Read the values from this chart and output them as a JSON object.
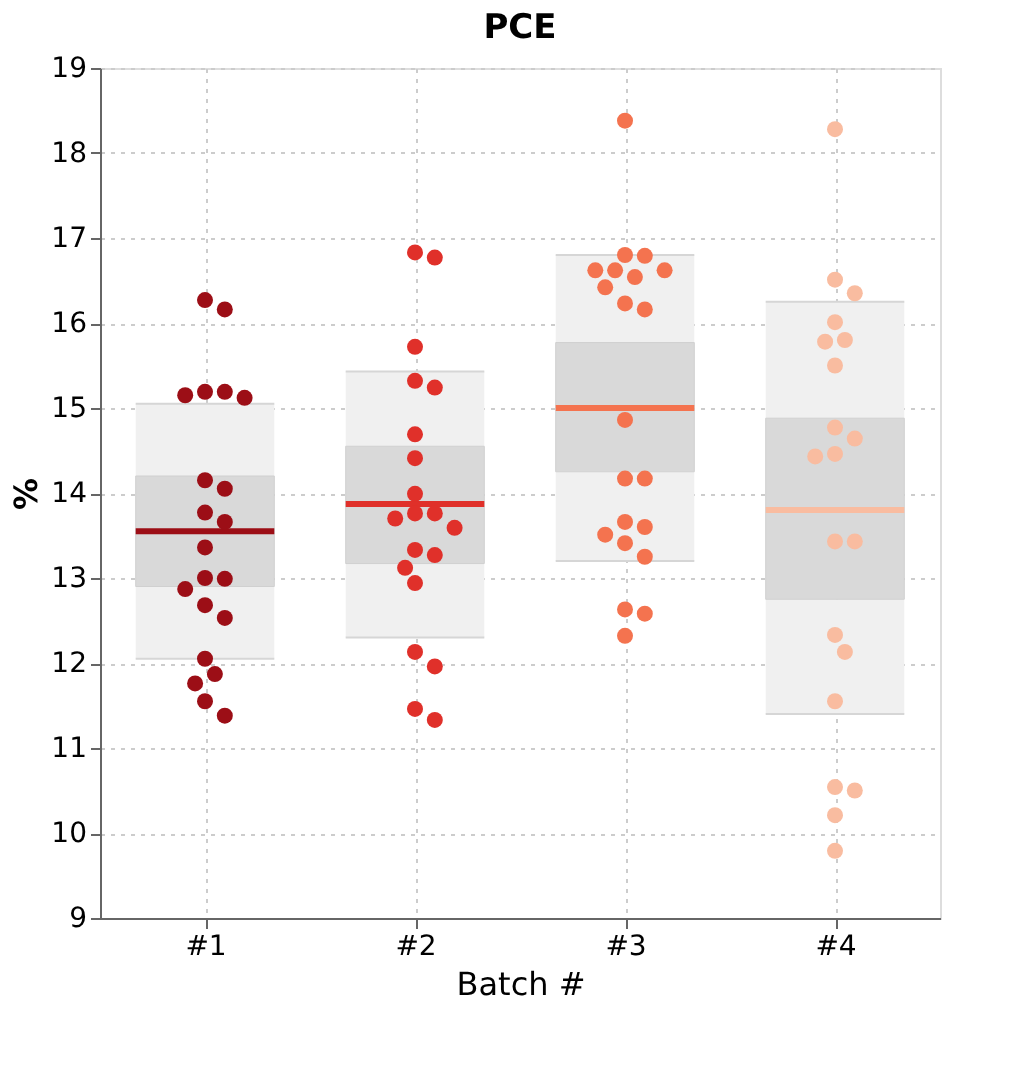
{
  "chart_data": {
    "type": "box",
    "title": "PCE",
    "xlabel": "Batch #",
    "ylabel": "%",
    "categories": [
      "#1",
      "#2",
      "#3",
      "#4"
    ],
    "boxes": [
      {
        "low": 12.05,
        "q1": 12.9,
        "median": 13.55,
        "q3": 14.2,
        "high": 15.05
      },
      {
        "low": 12.3,
        "q1": 13.17,
        "median": 13.87,
        "q3": 14.55,
        "high": 15.43
      },
      {
        "low": 13.2,
        "q1": 14.25,
        "median": 15.0,
        "q3": 15.77,
        "high": 16.8
      },
      {
        "low": 11.4,
        "q1": 12.75,
        "median": 13.8,
        "q3": 14.88,
        "high": 16.25
      }
    ],
    "series": [
      {
        "type": "scatter",
        "color": "#9c0e16",
        "x": [
          "#1",
          "#1",
          "#1",
          "#1",
          "#1",
          "#1",
          "#1",
          "#1",
          "#1",
          "#1",
          "#1",
          "#1",
          "#1",
          "#1",
          "#1",
          "#1",
          "#1",
          "#1",
          "#1",
          "#1",
          "#1"
        ],
        "values": [
          16.27,
          16.16,
          15.19,
          15.12,
          15.19,
          15.15,
          14.15,
          14.05,
          13.77,
          13.66,
          13.36,
          12.99,
          13.0,
          12.87,
          12.68,
          12.53,
          12.05,
          11.87,
          11.76,
          11.55,
          11.38
        ]
      },
      {
        "type": "scatter",
        "color": "#e0302a",
        "x": [
          "#2",
          "#2",
          "#2",
          "#2",
          "#2",
          "#2",
          "#2",
          "#2",
          "#2",
          "#2",
          "#2",
          "#2",
          "#2",
          "#2",
          "#2",
          "#2",
          "#2",
          "#2",
          "#2",
          "#2"
        ],
        "values": [
          16.83,
          16.77,
          15.72,
          15.32,
          15.24,
          14.69,
          14.41,
          13.99,
          13.76,
          13.76,
          13.7,
          13.59,
          13.27,
          13.33,
          13.12,
          12.94,
          12.13,
          11.96,
          11.46,
          11.33
        ]
      },
      {
        "type": "scatter",
        "color": "#f4734f",
        "x": [
          "#3",
          "#3",
          "#3",
          "#3",
          "#3",
          "#3",
          "#3",
          "#3",
          "#3",
          "#3",
          "#3",
          "#3",
          "#3",
          "#3",
          "#3",
          "#3",
          "#3",
          "#3",
          "#3",
          "#3",
          "#3"
        ],
        "values": [
          18.38,
          16.79,
          16.8,
          16.62,
          16.62,
          16.62,
          16.54,
          16.42,
          16.23,
          16.16,
          14.86,
          14.17,
          14.17,
          13.66,
          13.6,
          13.51,
          13.41,
          13.25,
          12.63,
          12.58,
          12.32
        ]
      },
      {
        "type": "scatter",
        "color": "#f9bca0",
        "x": [
          "#4",
          "#4",
          "#4",
          "#4",
          "#4",
          "#4",
          "#4",
          "#4",
          "#4",
          "#4",
          "#4",
          "#4",
          "#4",
          "#4",
          "#4",
          "#4",
          "#4",
          "#4",
          "#4",
          "#4"
        ],
        "values": [
          18.28,
          16.51,
          16.35,
          16.01,
          15.8,
          15.78,
          15.5,
          14.77,
          14.64,
          14.46,
          14.43,
          13.43,
          13.43,
          12.33,
          12.13,
          11.55,
          10.54,
          10.5,
          10.21,
          9.79
        ]
      }
    ],
    "ylim": [
      9,
      19
    ],
    "yticks": [
      9,
      10,
      11,
      12,
      13,
      14,
      15,
      16,
      17,
      18,
      19
    ],
    "grid": true
  }
}
